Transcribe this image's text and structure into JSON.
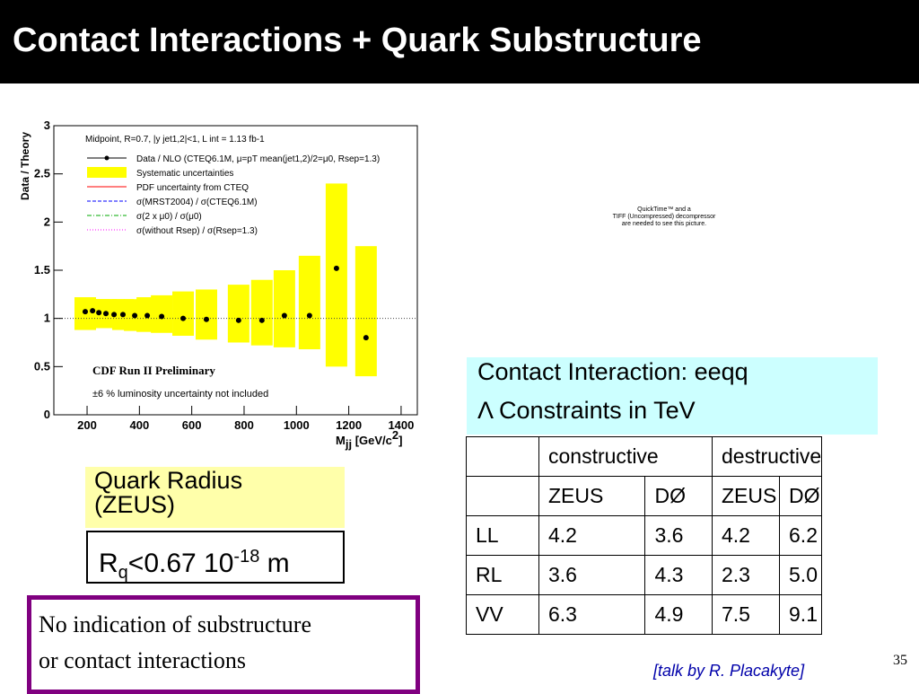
{
  "title": "Contact Interactions + Quark Substructure",
  "chart_data": {
    "type": "scatter",
    "y_label": "Data / Theory",
    "x_label": {
      "main": "M",
      "sub": "jj",
      "rest": " [GeV/c",
      "sup": "2",
      "end": "]"
    },
    "header": "Midpoint, R=0.7, |y jet1,2|<1, L int = 1.13 fb-1",
    "legend": [
      {
        "name": "Data / NLO (CTEQ6.1M, μ=pT mean(jet1,2)/2=μ0, Rsep=1.3)",
        "color": "#000000",
        "style": "point"
      },
      {
        "name": "Systematic uncertainties",
        "color": "#ffff00",
        "style": "box"
      },
      {
        "name": "PDF uncertainty from CTEQ",
        "color": "#ff0000",
        "style": "solid"
      },
      {
        "name": "σ(MRST2004) / σ(CTEQ6.1M)",
        "color": "#0000ff",
        "style": "dashed"
      },
      {
        "name": "σ(2 x μ0) / σ(μ0)",
        "color": "#00aa00",
        "style": "dashdot"
      },
      {
        "name": "σ(without Rsep) / σ(Rsep=1.3)",
        "color": "#ff00ff",
        "style": "dotted"
      }
    ],
    "annotations": [
      "CDF Run II Preliminary",
      "±6 % luminosity uncertainty not included"
    ],
    "x": [
      193,
      221,
      245,
      272,
      303,
      337,
      382,
      430,
      485,
      567,
      656,
      779,
      868,
      954,
      1050,
      1153,
      1266
    ],
    "values": [
      1.07,
      1.08,
      1.06,
      1.05,
      1.04,
      1.04,
      1.03,
      1.03,
      1.02,
      1.0,
      0.99,
      0.98,
      0.98,
      1.03,
      1.03,
      1.52,
      0.8
    ],
    "band_low": [
      0.88,
      0.9,
      0.9,
      0.9,
      0.9,
      0.88,
      0.87,
      0.86,
      0.85,
      0.82,
      0.78,
      0.75,
      0.72,
      0.7,
      0.68,
      0.5,
      0.4
    ],
    "band_high": [
      1.22,
      1.2,
      1.2,
      1.2,
      1.2,
      1.2,
      1.2,
      1.22,
      1.24,
      1.28,
      1.3,
      1.35,
      1.4,
      1.5,
      1.65,
      2.4,
      1.75
    ],
    "xlim": [
      73,
      1462
    ],
    "ylim": [
      0,
      3
    ],
    "xticks": [
      200,
      400,
      600,
      800,
      1000,
      1200,
      1400
    ],
    "yticks": [
      0,
      0.5,
      1,
      1.5,
      2,
      2.5,
      3
    ]
  },
  "quicktime": [
    "QuickTime™ and a",
    "TIFF (Uncompressed) decompressor",
    "are needed to see this picture."
  ],
  "table": {
    "caption": [
      "Contact Interaction: eeqq",
      "Λ Constraints in TeV"
    ],
    "groups": [
      "constructive",
      "destructive"
    ],
    "subheader": [
      "ZEUS",
      "DØ",
      "ZEUS",
      "DØ"
    ],
    "rows": [
      [
        "LL",
        "4.2",
        "3.6",
        "4.2",
        "6.2"
      ],
      [
        "RL",
        "3.6",
        "4.3",
        "2.3",
        "5.0"
      ],
      [
        "VV",
        "6.3",
        "4.9",
        "7.5",
        "9.1"
      ]
    ]
  },
  "quark_radius": {
    "label": [
      "Quark Radius",
      "(ZEUS)"
    ],
    "value": {
      "main": "R",
      "sub": "q",
      "mid": "<0.67 10",
      "sup": "-18",
      "end": " m"
    }
  },
  "note": [
    "No indication of substructure",
    "or contact interactions"
  ],
  "credit": "[talk by R. Placakyte]",
  "page_number": "35"
}
